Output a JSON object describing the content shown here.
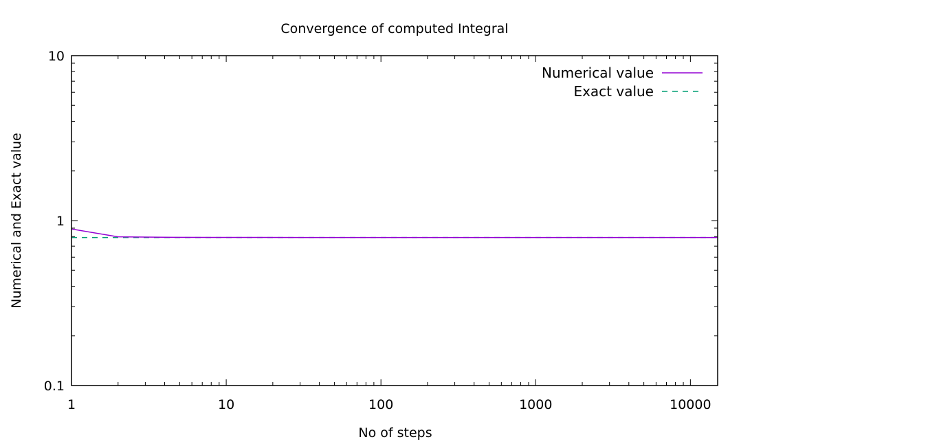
{
  "chart_data": {
    "type": "line",
    "title": "Convergence of computed Integral",
    "xlabel": "No of steps",
    "ylabel": "Numerical and Exact value",
    "xscale": "log",
    "yscale": "log",
    "xlim": [
      1,
      15000
    ],
    "ylim": [
      0.1,
      10
    ],
    "x_ticks": [
      {
        "value": 1,
        "label": "1"
      },
      {
        "value": 10,
        "label": "10"
      },
      {
        "value": 100,
        "label": "100"
      },
      {
        "value": 1000,
        "label": "1000"
      },
      {
        "value": 10000,
        "label": "10000"
      }
    ],
    "y_ticks": [
      {
        "value": 0.1,
        "label": "0.1"
      },
      {
        "value": 1,
        "label": "1"
      },
      {
        "value": 10,
        "label": "10"
      }
    ],
    "grid": false,
    "legend_position": "top-right",
    "series": [
      {
        "name": "Numerical value",
        "color": "#9400d3",
        "style": "solid",
        "x": [
          1,
          2,
          4,
          8,
          16,
          32,
          64,
          128,
          256,
          512,
          1024,
          2048,
          4096,
          8192,
          15000
        ],
        "y": [
          0.889,
          0.797,
          0.792,
          0.791,
          0.791,
          0.79,
          0.79,
          0.79,
          0.79,
          0.79,
          0.79,
          0.79,
          0.79,
          0.79,
          0.79
        ]
      },
      {
        "name": "Exact value",
        "color": "#009e73",
        "style": "dashed",
        "x": [
          1,
          15000
        ],
        "y": [
          0.79,
          0.79
        ]
      }
    ]
  }
}
